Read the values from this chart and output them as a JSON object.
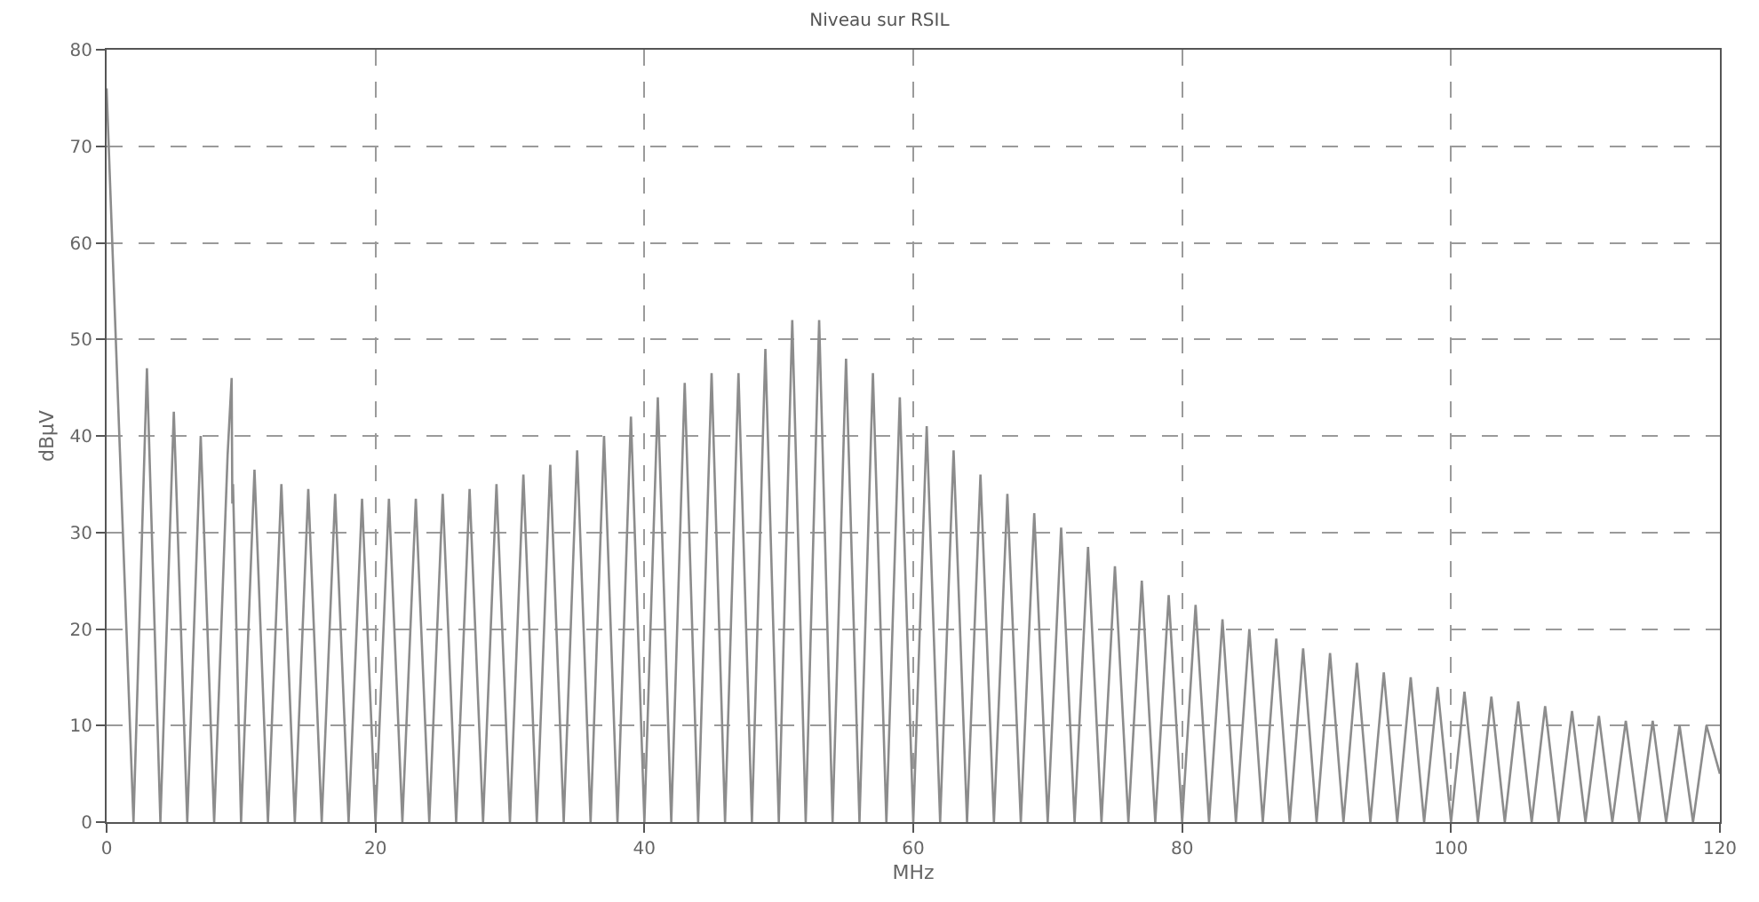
{
  "chart_data": {
    "type": "line",
    "title": "Niveau sur RSIL",
    "xlabel": "MHz",
    "ylabel": "dBµV",
    "xlim": [
      0,
      120
    ],
    "xticks": [
      0,
      20,
      40,
      60,
      80,
      100,
      120
    ],
    "ylim": [
      0,
      80
    ],
    "yticks": [
      0,
      10,
      20,
      30,
      40,
      50,
      60,
      70,
      80
    ],
    "grid": true,
    "line_style": "solid",
    "marker": "none",
    "series": [
      {
        "color": "#8c8c8c",
        "x": [
          0,
          2,
          3,
          4,
          5,
          6,
          7,
          8,
          9,
          9.3,
          9.35,
          9.4,
          10,
          11,
          12,
          13,
          14,
          15,
          16,
          17,
          18,
          19,
          20,
          21,
          22,
          23,
          24,
          25,
          26,
          27,
          28,
          29,
          30,
          31,
          32,
          33,
          34,
          35,
          36,
          37,
          38,
          39,
          40,
          41,
          42,
          43,
          44,
          45,
          46,
          47,
          48,
          49,
          50,
          51,
          52,
          53,
          54,
          55,
          56,
          57,
          58,
          59,
          60,
          61,
          62,
          63,
          64,
          65,
          66,
          67,
          68,
          69,
          70,
          71,
          72,
          73,
          74,
          75,
          76,
          77,
          78,
          79,
          80,
          81,
          82,
          83,
          84,
          85,
          86,
          87,
          88,
          89,
          90,
          91,
          92,
          93,
          94,
          95,
          96,
          97,
          98,
          99,
          100,
          101,
          102,
          103,
          104,
          105,
          106,
          107,
          108,
          109,
          110,
          111,
          112,
          113,
          114,
          115,
          116,
          117,
          118,
          119,
          120
        ],
        "values": [
          76,
          0,
          47,
          0,
          42.5,
          0,
          40,
          0,
          38,
          46,
          33,
          35,
          0,
          36.5,
          0,
          35,
          0,
          34.5,
          0,
          34,
          0,
          33.5,
          0,
          33.5,
          0,
          33.5,
          0,
          34,
          0,
          34.5,
          0,
          35,
          0,
          36,
          0,
          37,
          0,
          38.5,
          0,
          40,
          0,
          42,
          0,
          44,
          0,
          45.5,
          0,
          46.5,
          0,
          46.5,
          0,
          49,
          0,
          52,
          0,
          52,
          0,
          48,
          0,
          46.5,
          0,
          44,
          0,
          41,
          0,
          38.5,
          0,
          36,
          0,
          34,
          0,
          32,
          0,
          30.5,
          0,
          28.5,
          0,
          26.5,
          0,
          25,
          0,
          23.5,
          0,
          22.5,
          0,
          21,
          0,
          20,
          0,
          19,
          0,
          18,
          0,
          17.5,
          0,
          16.5,
          0,
          15.5,
          0,
          15,
          0,
          14,
          0,
          13.5,
          0,
          13,
          0,
          12.5,
          0,
          12,
          0,
          11.5,
          0,
          11,
          0,
          10.5,
          0,
          10.5,
          0,
          10,
          0,
          10,
          5
        ]
      }
    ]
  }
}
